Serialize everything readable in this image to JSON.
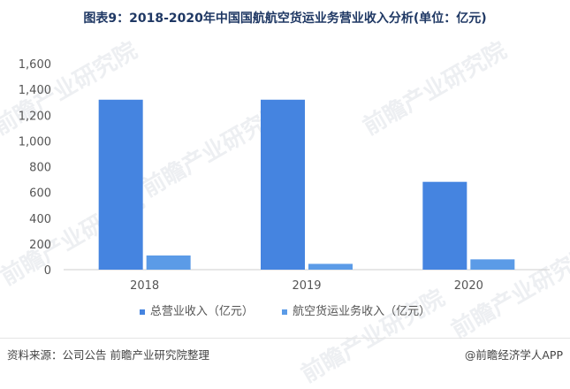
{
  "title": "图表9：2018-2020年中国国航航空货运业务营业收入分析(单位：亿元)",
  "watermark": "前瞻产业研究院",
  "source": "资料来源：公司公告 前瞻产业研究院整理",
  "brand": "@前瞻经济学人APP",
  "colors": {
    "series1": "#4584e0",
    "series2": "#5b9be7"
  },
  "chart_data": {
    "type": "bar",
    "categories": [
      "2018",
      "2019",
      "2020"
    ],
    "series": [
      {
        "name": "总营业收入（亿元）",
        "values": [
          1320,
          1320,
          682
        ]
      },
      {
        "name": "航空货运业务收入（亿元）",
        "values": [
          110,
          45,
          80
        ]
      }
    ],
    "ylim": [
      0,
      1600
    ],
    "yticks": [
      "0",
      "200",
      "400",
      "600",
      "800",
      "1,000",
      "1,200",
      "1,400",
      "1,600"
    ],
    "legend": "bottom",
    "grid": false
  }
}
